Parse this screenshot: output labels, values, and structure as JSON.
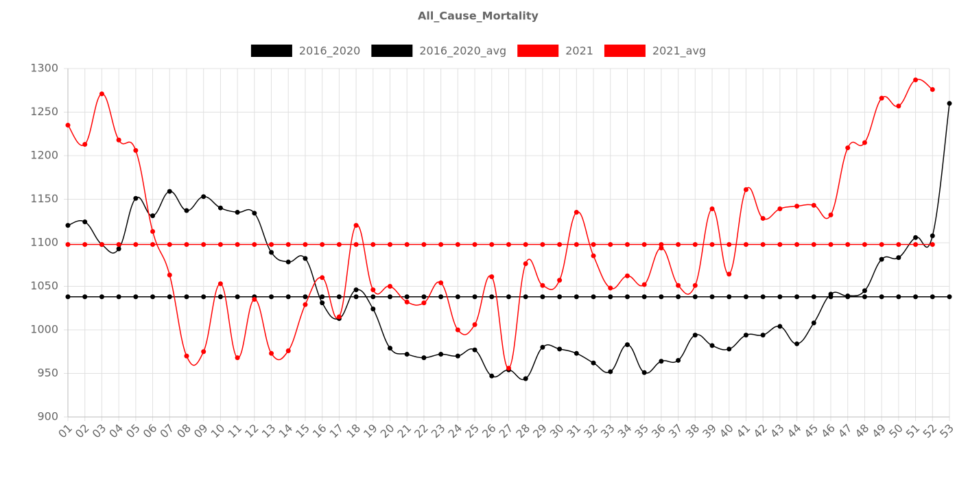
{
  "chart_data": {
    "type": "line",
    "title": "All_Cause_Mortality",
    "categories": [
      "01",
      "02",
      "03",
      "04",
      "05",
      "06",
      "07",
      "08",
      "09",
      "10",
      "11",
      "12",
      "13",
      "14",
      "15",
      "16",
      "17",
      "18",
      "19",
      "20",
      "21",
      "22",
      "23",
      "24",
      "25",
      "26",
      "27",
      "28",
      "29",
      "30",
      "31",
      "32",
      "33",
      "34",
      "35",
      "36",
      "37",
      "38",
      "39",
      "40",
      "41",
      "42",
      "43",
      "44",
      "45",
      "46",
      "47",
      "48",
      "49",
      "50",
      "51",
      "52",
      "53"
    ],
    "series": [
      {
        "name": "2016_2020",
        "color": "#000000",
        "values": [
          1120,
          1124,
          1098,
          1093,
          1151,
          1131,
          1159,
          1137,
          1153,
          1140,
          1135,
          1134,
          1089,
          1078,
          1082,
          1031,
          1013,
          1046,
          1024,
          979,
          972,
          968,
          972,
          970,
          977,
          947,
          954,
          944,
          980,
          978,
          973,
          962,
          952,
          983,
          951,
          964,
          965,
          994,
          982,
          978,
          994,
          994,
          1004,
          984,
          1008,
          1041,
          1039,
          1045,
          1081,
          1083,
          1106,
          1108,
          1260
        ]
      },
      {
        "name": "2016_2020_avg",
        "color": "#000000",
        "values": [
          1038,
          1038,
          1038,
          1038,
          1038,
          1038,
          1038,
          1038,
          1038,
          1038,
          1038,
          1038,
          1038,
          1038,
          1038,
          1038,
          1038,
          1038,
          1038,
          1038,
          1038,
          1038,
          1038,
          1038,
          1038,
          1038,
          1038,
          1038,
          1038,
          1038,
          1038,
          1038,
          1038,
          1038,
          1038,
          1038,
          1038,
          1038,
          1038,
          1038,
          1038,
          1038,
          1038,
          1038,
          1038,
          1038,
          1038,
          1038,
          1038,
          1038,
          1038,
          1038,
          1038
        ]
      },
      {
        "name": "2021",
        "color": "#ff0000",
        "values": [
          1235,
          1213,
          1271,
          1218,
          1206,
          1113,
          1063,
          970,
          975,
          1053,
          968,
          1035,
          973,
          976,
          1029,
          1060,
          1015,
          1120,
          1046,
          1050,
          1032,
          1031,
          1054,
          1000,
          1006,
          1061,
          956,
          1076,
          1051,
          1057,
          1135,
          1085,
          1048,
          1062,
          1052,
          1094,
          1051,
          1051,
          1139,
          1064,
          1161,
          1128,
          1139,
          1142,
          1143,
          1132,
          1209,
          1215,
          1266,
          1257,
          1287,
          1276,
          null
        ]
      },
      {
        "name": "2021_avg",
        "color": "#ff0000",
        "values": [
          1098,
          1098,
          1098,
          1098,
          1098,
          1098,
          1098,
          1098,
          1098,
          1098,
          1098,
          1098,
          1098,
          1098,
          1098,
          1098,
          1098,
          1098,
          1098,
          1098,
          1098,
          1098,
          1098,
          1098,
          1098,
          1098,
          1098,
          1098,
          1098,
          1098,
          1098,
          1098,
          1098,
          1098,
          1098,
          1098,
          1098,
          1098,
          1098,
          1098,
          1098,
          1098,
          1098,
          1098,
          1098,
          1098,
          1098,
          1098,
          1098,
          1098,
          1098,
          1098,
          null
        ]
      }
    ],
    "ylim": [
      900,
      1300
    ],
    "yticks": [
      900,
      950,
      1000,
      1050,
      1100,
      1150,
      1200,
      1250,
      1300
    ],
    "grid": true,
    "legend": "top"
  }
}
